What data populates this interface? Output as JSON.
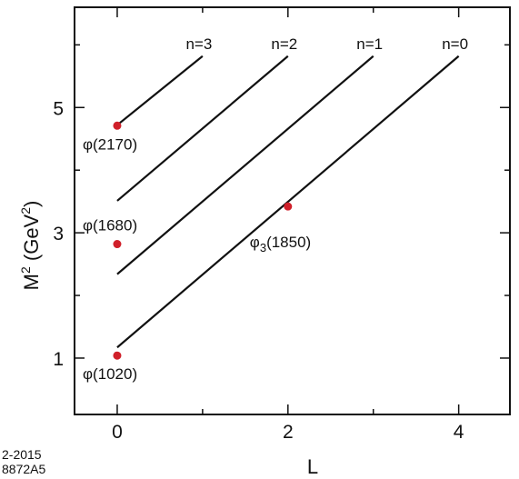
{
  "chart_data": {
    "type": "line",
    "xlabel": "L",
    "ylabel": {
      "base": "M",
      "sup": "2",
      "unit_open": " (GeV",
      "unit_sup": "2",
      "unit_close": ")"
    },
    "xlim": [
      -0.5,
      4.6
    ],
    "ylim": [
      0.1,
      6.6
    ],
    "x_ticks": [
      0,
      2,
      4
    ],
    "x_minor_ticks": [
      1,
      3
    ],
    "y_ticks": [
      1,
      3,
      5
    ],
    "y_minor_ticks": [
      2,
      4,
      6
    ],
    "grid": false,
    "series": [
      {
        "name": "n=0",
        "x": [
          0,
          4
        ],
        "y": [
          1.17,
          5.82
        ]
      },
      {
        "name": "n=1",
        "x": [
          0,
          3
        ],
        "y": [
          2.34,
          5.82
        ]
      },
      {
        "name": "n=2",
        "x": [
          0,
          2
        ],
        "y": [
          3.51,
          5.82
        ]
      },
      {
        "name": "n=3",
        "x": [
          0,
          1
        ],
        "y": [
          4.72,
          5.82
        ]
      }
    ],
    "points": [
      {
        "label": "φ(1020)",
        "x": 0,
        "y": 1.04
      },
      {
        "label": "φ(1680)",
        "x": 0,
        "y": 2.82
      },
      {
        "label": "φ(2170)",
        "x": 0,
        "y": 4.71
      },
      {
        "label_base": "φ",
        "label_sub": "3",
        "label_rest": "(1850)",
        "x": 2,
        "y": 3.42
      }
    ],
    "point_color": "#d0202a",
    "line_color": "#111111"
  },
  "footer": {
    "line1": "2-2015",
    "line2": "8872A5"
  }
}
